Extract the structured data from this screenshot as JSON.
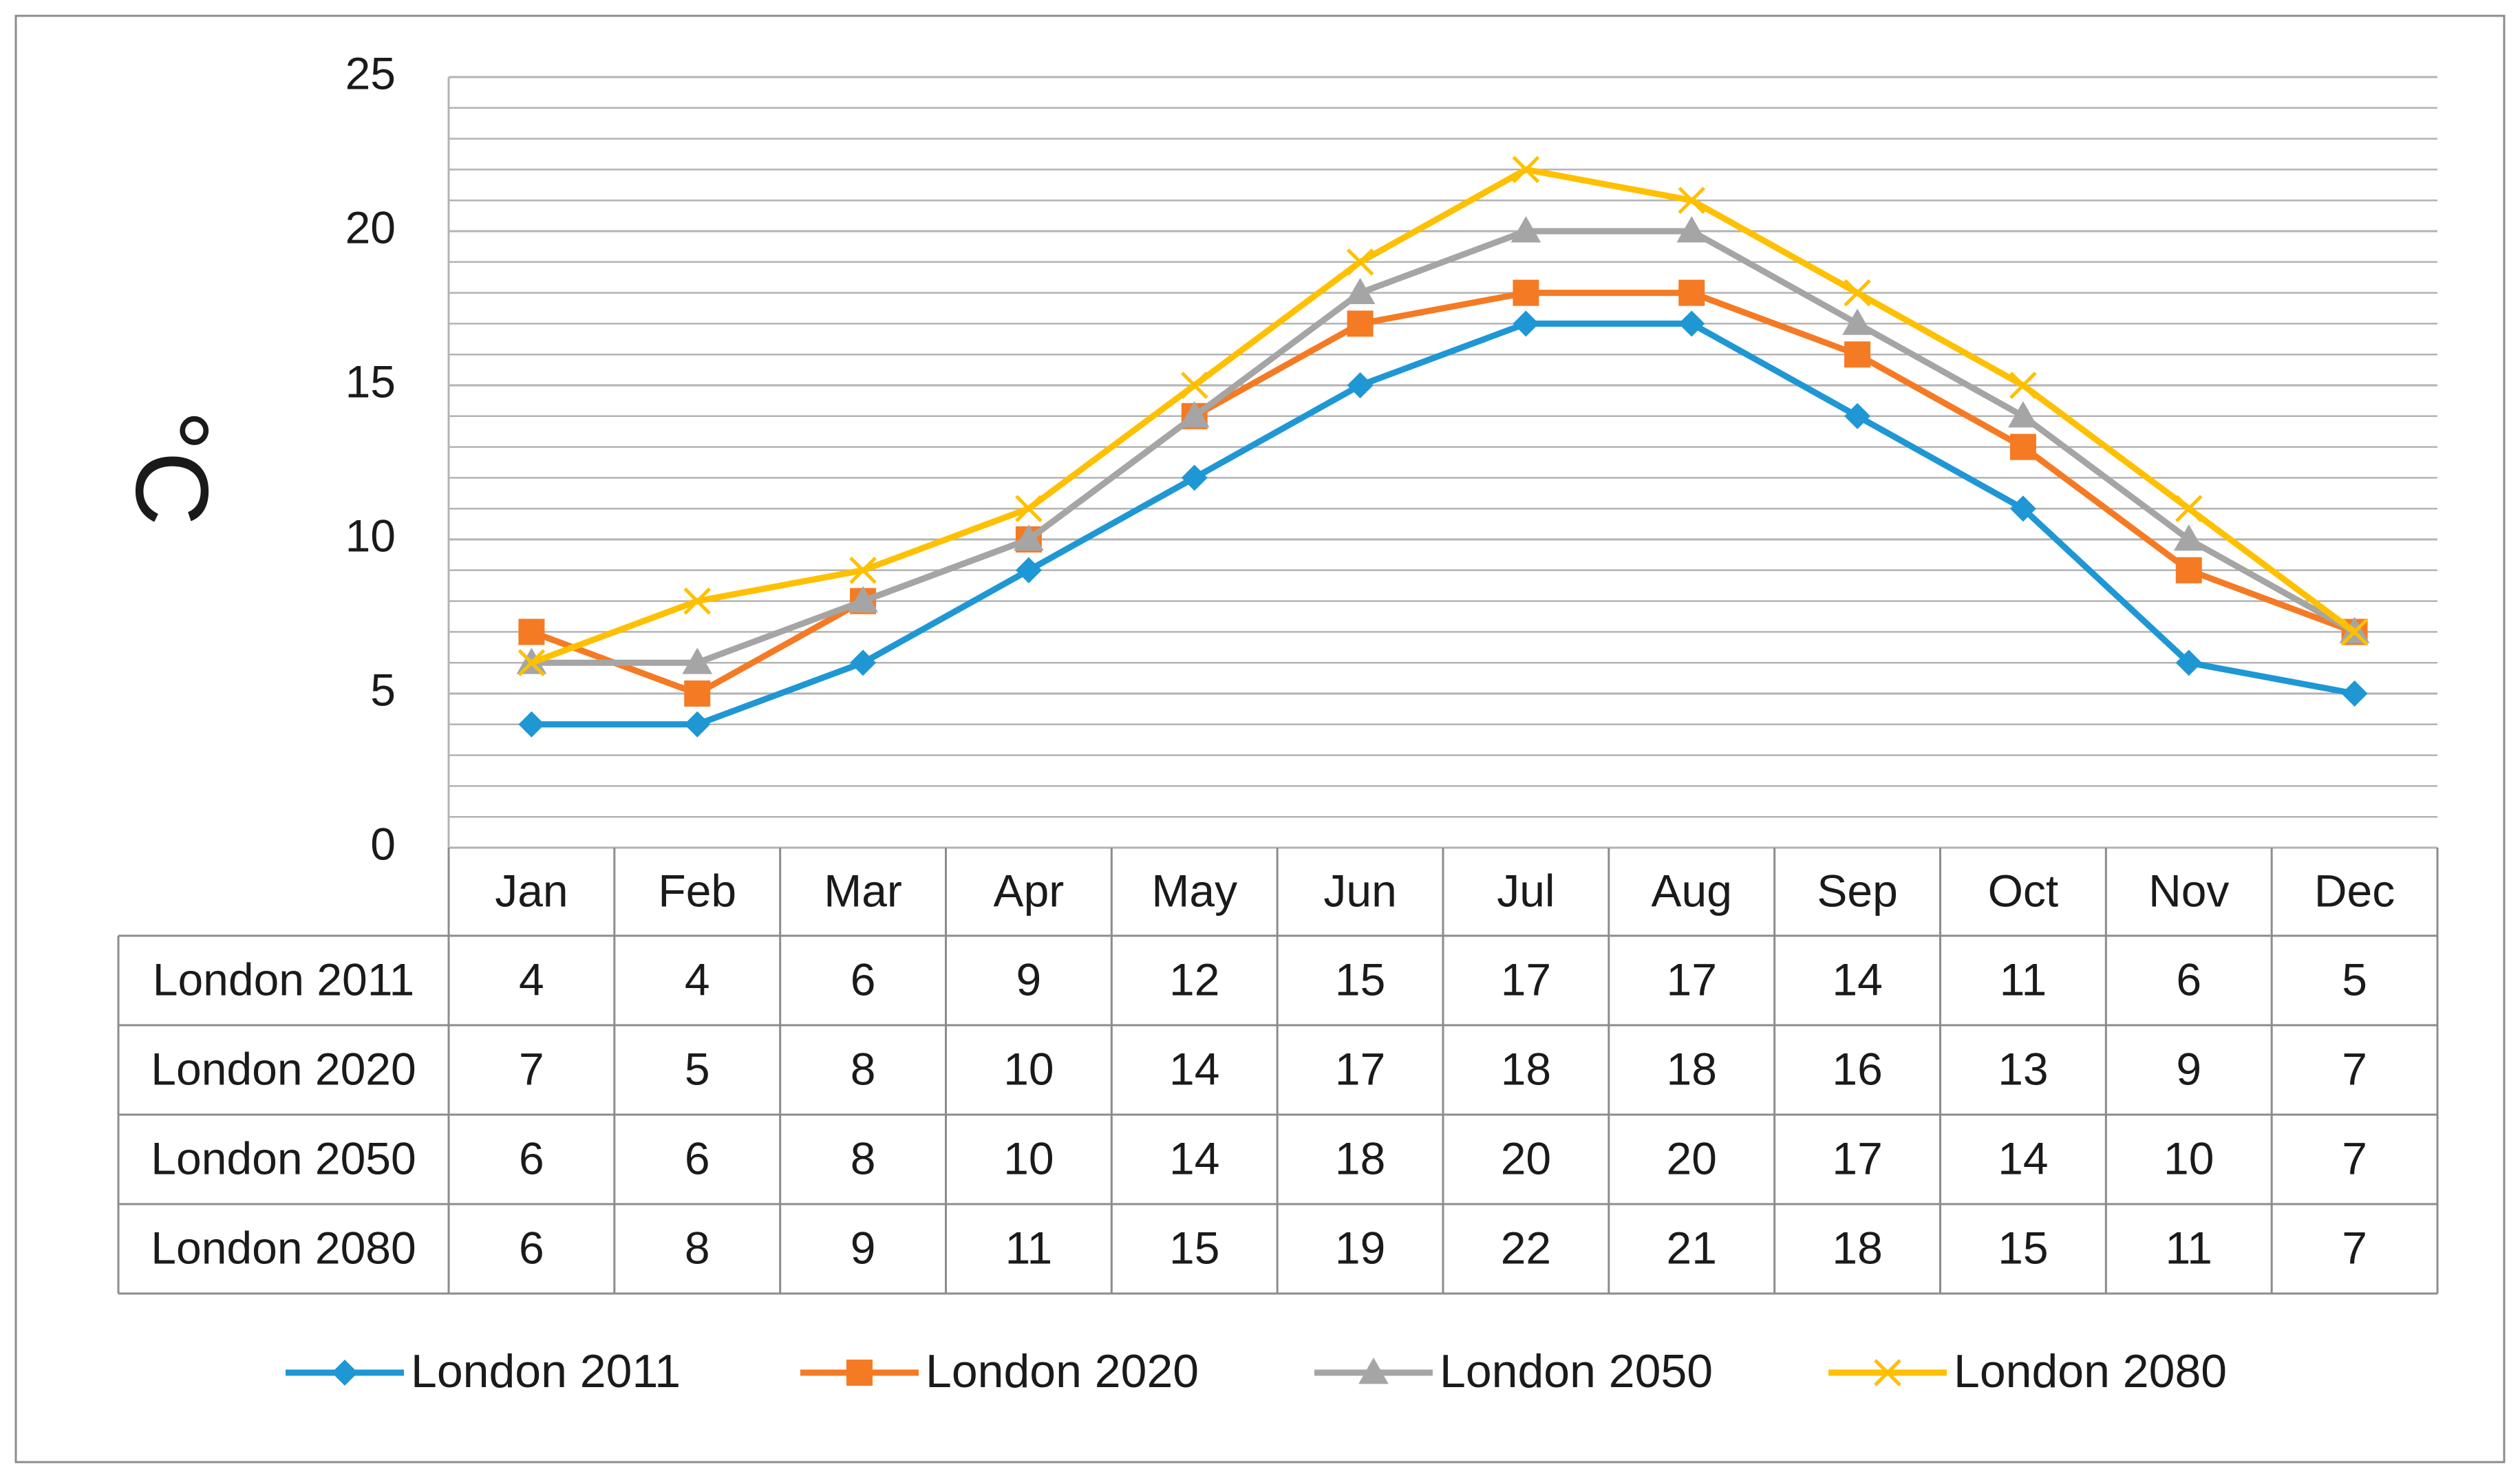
{
  "chart_data": {
    "type": "line",
    "title": "",
    "ylabel": "°C",
    "xlabel": "",
    "ylim": [
      0,
      25
    ],
    "y_major_ticks": [
      0,
      5,
      10,
      15,
      20,
      25
    ],
    "y_minor_step": 1,
    "grid": true,
    "legend_position": "bottom",
    "data_table": true,
    "categories": [
      "Jan",
      "Feb",
      "Mar",
      "Apr",
      "May",
      "Jun",
      "Jul",
      "Aug",
      "Sep",
      "Oct",
      "Nov",
      "Dec"
    ],
    "series": [
      {
        "name": "London 2011",
        "color": "#1f97d4",
        "marker": "diamond",
        "values": [
          4,
          4,
          6,
          9,
          12,
          15,
          17,
          17,
          14,
          11,
          6,
          5
        ]
      },
      {
        "name": "London 2020",
        "color": "#f57a24",
        "marker": "square",
        "values": [
          7,
          5,
          8,
          10,
          14,
          17,
          18,
          18,
          16,
          13,
          9,
          7
        ]
      },
      {
        "name": "London 2050",
        "color": "#a5a5a5",
        "marker": "triangle",
        "values": [
          6,
          6,
          8,
          10,
          14,
          18,
          20,
          20,
          17,
          14,
          10,
          7
        ]
      },
      {
        "name": "London 2080",
        "color": "#ffc000",
        "marker": "x",
        "values": [
          6,
          8,
          9,
          11,
          15,
          19,
          22,
          21,
          18,
          15,
          11,
          7
        ]
      }
    ]
  }
}
